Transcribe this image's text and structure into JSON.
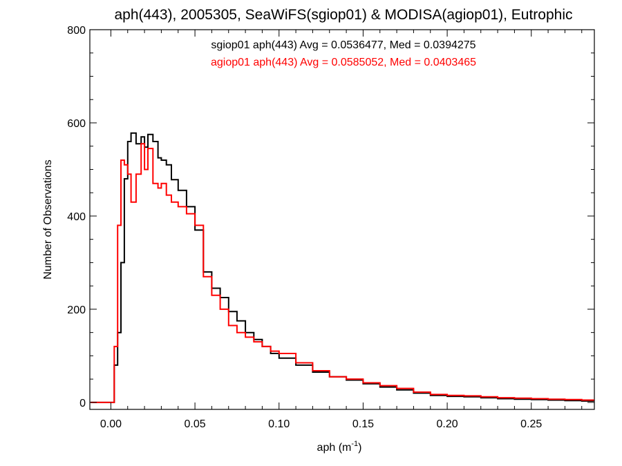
{
  "chart_data": {
    "type": "line",
    "title": "aph(443), 2005305, SeaWiFS(sgiop01) & MODISA(agiop01), Eutrophic",
    "xlabel": "aph (m",
    "xlabel_sup": "-1",
    "xlabel_end": ")",
    "ylabel": "Number of Observations",
    "xlim": [
      -0.0125,
      0.2875
    ],
    "ylim": [
      -15,
      800
    ],
    "x_ticks": [
      0.0,
      0.05,
      0.1,
      0.15,
      0.2,
      0.25
    ],
    "x_tick_labels": [
      "0.00",
      "0.05",
      "0.10",
      "0.15",
      "0.20",
      "0.25"
    ],
    "y_ticks": [
      0,
      200,
      400,
      600,
      800
    ],
    "y_tick_labels": [
      "0",
      "200",
      "400",
      "600",
      "800"
    ],
    "grid": false,
    "annotations": [
      {
        "text": "sgiop01 aph(443) Avg = 0.0536477, Med = 0.0394275",
        "color": "#000000"
      },
      {
        "text": "agiop01 aph(443) Avg = 0.0585052, Med = 0.0403465",
        "color": "#ff0000"
      }
    ],
    "step": "histogram",
    "series": [
      {
        "color": "#000000",
        "x": [
          -0.012,
          0.0,
          0.002,
          0.004,
          0.006,
          0.008,
          0.01,
          0.012,
          0.015,
          0.018,
          0.02,
          0.022,
          0.025,
          0.028,
          0.03,
          0.033,
          0.036,
          0.04,
          0.045,
          0.05,
          0.055,
          0.06,
          0.065,
          0.07,
          0.075,
          0.08,
          0.085,
          0.09,
          0.095,
          0.1,
          0.11,
          0.12,
          0.13,
          0.14,
          0.15,
          0.16,
          0.17,
          0.18,
          0.19,
          0.2,
          0.21,
          0.22,
          0.23,
          0.24,
          0.25,
          0.26,
          0.27,
          0.28,
          0.287
        ],
        "y": [
          0,
          0,
          80,
          150,
          300,
          480,
          560,
          578,
          555,
          570,
          548,
          575,
          560,
          525,
          520,
          510,
          478,
          455,
          420,
          370,
          280,
          245,
          225,
          195,
          175,
          150,
          135,
          120,
          105,
          95,
          80,
          65,
          55,
          48,
          40,
          33,
          27,
          20,
          15,
          13,
          12,
          10,
          8,
          7,
          6,
          5,
          4,
          3,
          2
        ]
      },
      {
        "color": "#ff0000",
        "x": [
          -0.012,
          0.0,
          0.002,
          0.004,
          0.006,
          0.008,
          0.01,
          0.012,
          0.015,
          0.018,
          0.02,
          0.022,
          0.025,
          0.028,
          0.03,
          0.033,
          0.036,
          0.04,
          0.045,
          0.05,
          0.055,
          0.06,
          0.065,
          0.07,
          0.075,
          0.08,
          0.085,
          0.09,
          0.095,
          0.1,
          0.11,
          0.12,
          0.13,
          0.14,
          0.15,
          0.16,
          0.17,
          0.18,
          0.19,
          0.2,
          0.21,
          0.22,
          0.23,
          0.24,
          0.25,
          0.26,
          0.27,
          0.28,
          0.287
        ],
        "y": [
          0,
          0,
          120,
          380,
          520,
          510,
          490,
          430,
          490,
          555,
          500,
          545,
          470,
          460,
          470,
          445,
          430,
          420,
          405,
          380,
          270,
          230,
          200,
          165,
          150,
          140,
          130,
          120,
          110,
          105,
          85,
          68,
          55,
          50,
          42,
          36,
          30,
          22,
          17,
          15,
          14,
          12,
          10,
          9,
          8,
          7,
          6,
          5,
          4
        ]
      }
    ]
  }
}
